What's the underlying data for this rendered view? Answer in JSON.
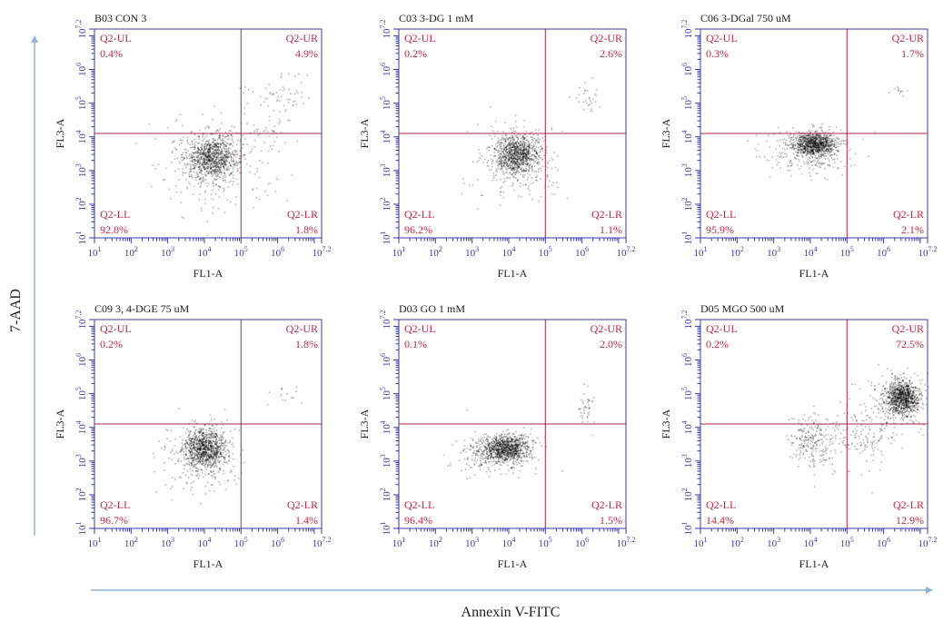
{
  "figure": {
    "y_axis_title": "7-AAD",
    "x_axis_title": "Annexin V-FITC",
    "colors": {
      "axis": "#3a3aa8",
      "gate": "#b02040",
      "gate_text": "#c02848",
      "dots": "#000000",
      "arrow": "#8fb4dc",
      "text": "#222222"
    }
  },
  "chart_data": [
    {
      "type": "scatter",
      "title": "B03 CON 3",
      "xlabel": "FL1-A",
      "ylabel": "FL3-A",
      "scale": "log10",
      "xlim": [
        1,
        7.2
      ],
      "ylim": [
        1,
        7.2
      ],
      "x_ticks": [
        "1",
        "2",
        "3",
        "4",
        "5",
        "6",
        "7.2"
      ],
      "y_ticks": [
        "1",
        "2",
        "3",
        "4",
        "5",
        "6",
        "7.2"
      ],
      "gate": {
        "x": 5.0,
        "y": 4.1
      },
      "quadrants": [
        {
          "name": "Q2-UL",
          "value": "0.4%",
          "pos": "ul"
        },
        {
          "name": "Q2-UR",
          "value": "4.9%",
          "pos": "ur"
        },
        {
          "name": "Q2-LL",
          "value": "92.8%",
          "pos": "ll"
        },
        {
          "name": "Q2-LR",
          "value": "1.8%",
          "pos": "lr"
        }
      ],
      "clusters": [
        {
          "x": 4.2,
          "y": 3.4,
          "sx": 0.35,
          "sy": 0.32,
          "n": 900
        },
        {
          "x": 4.3,
          "y": 3.2,
          "sx": 0.8,
          "sy": 0.7,
          "n": 260
        },
        {
          "x": 6.0,
          "y": 5.3,
          "sx": 0.5,
          "sy": 0.35,
          "n": 60
        },
        {
          "x": 5.6,
          "y": 4.2,
          "sx": 0.4,
          "sy": 0.3,
          "n": 40
        }
      ]
    },
    {
      "type": "scatter",
      "title": "C03 3-DG 1 mM",
      "xlabel": "FL1-A",
      "ylabel": "FL3-A",
      "scale": "log10",
      "xlim": [
        1,
        7.2
      ],
      "ylim": [
        1,
        7.2
      ],
      "x_ticks": [
        "1",
        "2",
        "3",
        "4",
        "5",
        "6",
        "7.2"
      ],
      "y_ticks": [
        "1",
        "2",
        "3",
        "4",
        "5",
        "6",
        "7.2"
      ],
      "gate": {
        "x": 5.0,
        "y": 4.1
      },
      "quadrants": [
        {
          "name": "Q2-UL",
          "value": "0.2%",
          "pos": "ul"
        },
        {
          "name": "Q2-UR",
          "value": "2.6%",
          "pos": "ur"
        },
        {
          "name": "Q2-LL",
          "value": "96.2%",
          "pos": "ll"
        },
        {
          "name": "Q2-LR",
          "value": "1.1%",
          "pos": "lr"
        }
      ],
      "clusters": [
        {
          "x": 4.2,
          "y": 3.5,
          "sx": 0.3,
          "sy": 0.3,
          "n": 900
        },
        {
          "x": 4.2,
          "y": 3.2,
          "sx": 0.55,
          "sy": 0.6,
          "n": 220
        },
        {
          "x": 6.1,
          "y": 5.2,
          "sx": 0.2,
          "sy": 0.25,
          "n": 30
        }
      ]
    },
    {
      "type": "scatter",
      "title": "C06 3-DGal 750 uM",
      "xlabel": "FL1-A",
      "ylabel": "FL3-A",
      "scale": "log10",
      "xlim": [
        1,
        7.2
      ],
      "ylim": [
        1,
        7.2
      ],
      "x_ticks": [
        "1",
        "2",
        "3",
        "4",
        "5",
        "6",
        "7.2"
      ],
      "y_ticks": [
        "1",
        "2",
        "3",
        "4",
        "5",
        "6",
        "7.2"
      ],
      "gate": {
        "x": 5.0,
        "y": 4.1
      },
      "quadrants": [
        {
          "name": "Q2-UL",
          "value": "0.3%",
          "pos": "ul"
        },
        {
          "name": "Q2-UR",
          "value": "1.7%",
          "pos": "ur"
        },
        {
          "name": "Q2-LL",
          "value": "95.9%",
          "pos": "ll"
        },
        {
          "name": "Q2-LR",
          "value": "2.1%",
          "pos": "lr"
        }
      ],
      "clusters": [
        {
          "x": 4.1,
          "y": 3.8,
          "sx": 0.3,
          "sy": 0.18,
          "n": 900
        },
        {
          "x": 3.9,
          "y": 3.6,
          "sx": 0.6,
          "sy": 0.35,
          "n": 260
        },
        {
          "x": 6.4,
          "y": 5.4,
          "sx": 0.1,
          "sy": 0.1,
          "n": 12
        }
      ]
    },
    {
      "type": "scatter",
      "title": "C09 3, 4-DGE 75 uM",
      "xlabel": "FL1-A",
      "ylabel": "FL3-A",
      "scale": "log10",
      "xlim": [
        1,
        7.2
      ],
      "ylim": [
        1,
        7.2
      ],
      "x_ticks": [
        "1",
        "2",
        "3",
        "4",
        "5",
        "6",
        "7.2"
      ],
      "y_ticks": [
        "1",
        "2",
        "3",
        "4",
        "5",
        "6",
        "7.2"
      ],
      "gate": {
        "x": 5.0,
        "y": 4.1
      },
      "quadrants": [
        {
          "name": "Q2-UL",
          "value": "0.2%",
          "pos": "ul"
        },
        {
          "name": "Q2-UR",
          "value": "1.8%",
          "pos": "ur"
        },
        {
          "name": "Q2-LL",
          "value": "96.7%",
          "pos": "ll"
        },
        {
          "name": "Q2-LR",
          "value": "1.4%",
          "pos": "lr"
        }
      ],
      "clusters": [
        {
          "x": 4.0,
          "y": 3.4,
          "sx": 0.28,
          "sy": 0.3,
          "n": 900
        },
        {
          "x": 3.9,
          "y": 3.2,
          "sx": 0.5,
          "sy": 0.55,
          "n": 240
        },
        {
          "x": 6.2,
          "y": 5.0,
          "sx": 0.2,
          "sy": 0.2,
          "n": 14
        }
      ]
    },
    {
      "type": "scatter",
      "title": "D03 GO 1 mM",
      "xlabel": "FL1-A",
      "ylabel": "FL3-A",
      "scale": "log10",
      "xlim": [
        1,
        7.2
      ],
      "ylim": [
        1,
        7.2
      ],
      "x_ticks": [
        "1",
        "2",
        "3",
        "4",
        "5",
        "6",
        "7.2"
      ],
      "y_ticks": [
        "1",
        "2",
        "3",
        "4",
        "5",
        "6",
        "7.2"
      ],
      "gate": {
        "x": 5.0,
        "y": 4.1
      },
      "quadrants": [
        {
          "name": "Q2-UL",
          "value": "0.1%",
          "pos": "ul"
        },
        {
          "name": "Q2-UR",
          "value": "2.0%",
          "pos": "ur"
        },
        {
          "name": "Q2-LL",
          "value": "96.4%",
          "pos": "ll"
        },
        {
          "name": "Q2-LR",
          "value": "1.5%",
          "pos": "lr"
        }
      ],
      "clusters": [
        {
          "x": 3.9,
          "y": 3.4,
          "sx": 0.33,
          "sy": 0.2,
          "n": 900
        },
        {
          "x": 3.6,
          "y": 3.2,
          "sx": 0.55,
          "sy": 0.3,
          "n": 240
        },
        {
          "x": 6.1,
          "y": 4.6,
          "sx": 0.12,
          "sy": 0.25,
          "n": 40
        }
      ]
    },
    {
      "type": "scatter",
      "title": "D05 MGO 500 uM",
      "xlabel": "FL1-A",
      "ylabel": "FL3-A",
      "scale": "log10",
      "xlim": [
        1,
        7.2
      ],
      "ylim": [
        1,
        7.2
      ],
      "x_ticks": [
        "1",
        "2",
        "3",
        "4",
        "5",
        "6",
        "7.2"
      ],
      "y_ticks": [
        "1",
        "2",
        "3",
        "4",
        "5",
        "6",
        "7.2"
      ],
      "gate": {
        "x": 5.0,
        "y": 4.1
      },
      "quadrants": [
        {
          "name": "Q2-UL",
          "value": "0.2%",
          "pos": "ul"
        },
        {
          "name": "Q2-UR",
          "value": "72.5%",
          "pos": "ur"
        },
        {
          "name": "Q2-LL",
          "value": "14.4%",
          "pos": "ll"
        },
        {
          "name": "Q2-LR",
          "value": "12.9%",
          "pos": "lr"
        }
      ],
      "clusters": [
        {
          "x": 6.5,
          "y": 4.9,
          "sx": 0.22,
          "sy": 0.25,
          "n": 900
        },
        {
          "x": 6.3,
          "y": 4.7,
          "sx": 0.45,
          "sy": 0.5,
          "n": 200
        },
        {
          "x": 4.0,
          "y": 3.6,
          "sx": 0.3,
          "sy": 0.4,
          "n": 220
        },
        {
          "x": 5.3,
          "y": 3.7,
          "sx": 0.55,
          "sy": 0.45,
          "n": 160
        }
      ]
    }
  ]
}
